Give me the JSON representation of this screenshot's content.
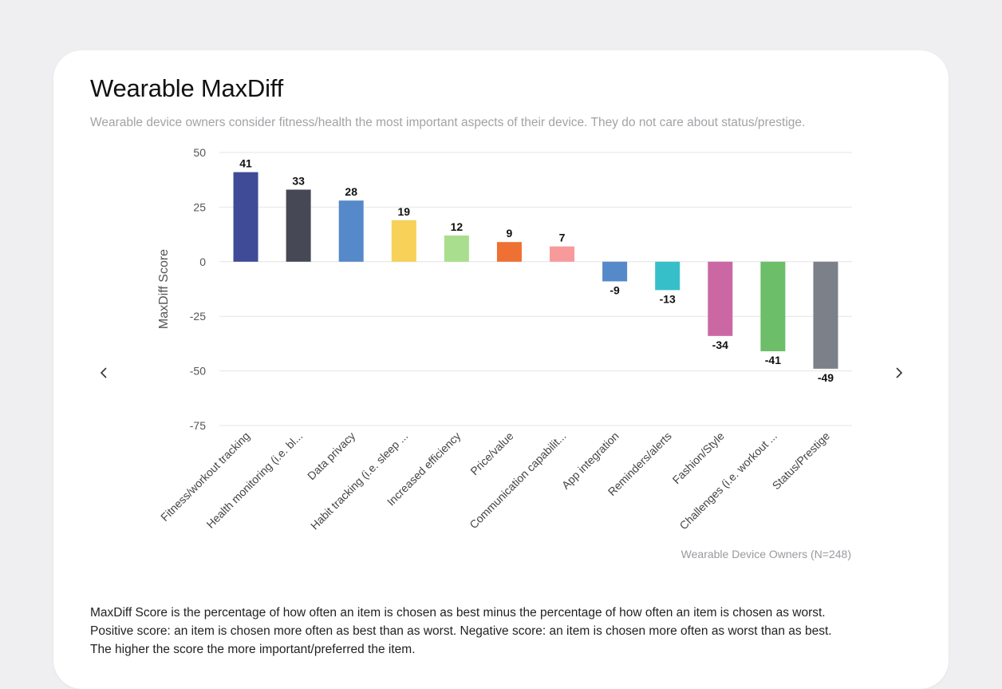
{
  "title": "Wearable MaxDiff",
  "subtitle": "Wearable device owners consider fitness/health the most important aspects of their device. They do not care about status/prestige.",
  "nav": {
    "prev_icon": "chevron-left-icon",
    "next_icon": "chevron-right-icon"
  },
  "footnote": {
    "line1": "MaxDiff Score is the percentage of how often an item is chosen as best minus the percentage of how often an item is chosen as worst.",
    "line2": "Positive score: an item is chosen more often as best than as worst. Negative score: an item is chosen more often as worst than as best.",
    "line3": "The higher the score the more important/preferred the item."
  },
  "chart_data": {
    "type": "bar",
    "title": "",
    "xlabel": "",
    "ylabel": "MaxDiff Score",
    "ylim": [
      -75,
      50
    ],
    "yticks": [
      50,
      25,
      0,
      -25,
      -50,
      -75
    ],
    "grid": true,
    "note": "Wearable Device Owners (N=248)",
    "categories": [
      "Fitness/workout tracking",
      "Health monitoring (i.e. bl...",
      "Data privacy",
      "Habit tracking (i.e. sleep ...",
      "Increased efficiency",
      "Price/value",
      "Communication capabilit...",
      "App integration",
      "Reminders/alerts",
      "Fashion/Style",
      "Challenges (i.e. workout ...",
      "Status/Prestige"
    ],
    "values": [
      41,
      33,
      28,
      19,
      12,
      9,
      7,
      -9,
      -13,
      -34,
      -41,
      -49
    ],
    "colors": [
      "#3f4b96",
      "#464955",
      "#5589c9",
      "#f7d158",
      "#a9de8e",
      "#ef7033",
      "#f89a9b",
      "#5589c9",
      "#37bfc9",
      "#cb68a4",
      "#6cbe69",
      "#7b8089"
    ]
  }
}
